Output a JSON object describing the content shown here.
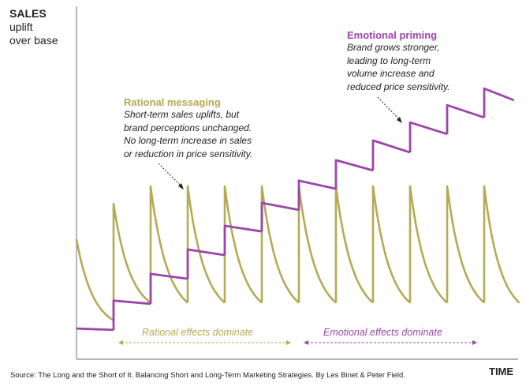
{
  "y_axis_label": {
    "line1": "SALES",
    "line2": "uplift",
    "line3": "over base"
  },
  "x_axis_label": "TIME",
  "rational_callout": {
    "title": "Rational messaging",
    "lines": [
      "Short-term sales uplifts, but",
      "brand perceptions unchanged.",
      "No long-term increase in sales",
      "or reduction in price sensitivity."
    ]
  },
  "emotional_callout": {
    "title": "Emotional priming",
    "lines": [
      "Brand grows stronger,",
      "leading to long-term",
      "volume increase and",
      "reduced price sensitivity."
    ]
  },
  "regions": {
    "rational": "Rational effects dominate",
    "emotional": "Emotional effects dominate"
  },
  "source": "Source: The Long and the Short of It. Balancing Short and Long-Term Marketing Strategies. By Les Binet & Peter Field.",
  "colors": {
    "rational": "#b5aa55",
    "emotional": "#9b46a8",
    "axis": "#888888"
  },
  "chart_data": {
    "type": "line",
    "title": "",
    "xlabel": "TIME",
    "ylabel": "SALES uplift over base",
    "xlim": [
      0,
      12
    ],
    "ylim": [
      0,
      100
    ],
    "rational_series": {
      "name": "Rational messaging (short-term uplifts)",
      "segments": [
        {
          "t0": 0,
          "t1": 1,
          "start": 34,
          "end": 11
        },
        {
          "t0": 1,
          "t1": 2,
          "start": 44,
          "end": 16
        },
        {
          "t0": 2,
          "t1": 3,
          "start": 49,
          "end": 16
        },
        {
          "t0": 3,
          "t1": 4,
          "start": 49,
          "end": 16
        },
        {
          "t0": 4,
          "t1": 5,
          "start": 49,
          "end": 16
        },
        {
          "t0": 5,
          "t1": 6,
          "start": 49,
          "end": 16
        },
        {
          "t0": 6,
          "t1": 7,
          "start": 49,
          "end": 16
        },
        {
          "t0": 7,
          "t1": 8,
          "start": 49,
          "end": 16
        },
        {
          "t0": 8,
          "t1": 9,
          "start": 49,
          "end": 16
        },
        {
          "t0": 9,
          "t1": 10,
          "start": 49,
          "end": 16
        },
        {
          "t0": 10,
          "t1": 11,
          "start": 49,
          "end": 16
        },
        {
          "t0": 11,
          "t1": 11.95,
          "start": 49,
          "end": 16
        }
      ]
    },
    "emotional_series": {
      "name": "Emotional priming (long-term growth)",
      "segments": [
        {
          "t0": 0,
          "t1": 1,
          "start": 8.7,
          "end": 8.3
        },
        {
          "t0": 1,
          "t1": 2,
          "start": 16.6,
          "end": 15.7
        },
        {
          "t0": 2,
          "t1": 3,
          "start": 24.2,
          "end": 22.8
        },
        {
          "t0": 3,
          "t1": 4,
          "start": 31.1,
          "end": 29.5
        },
        {
          "t0": 4,
          "t1": 5,
          "start": 37.8,
          "end": 36.2
        },
        {
          "t0": 5,
          "t1": 6,
          "start": 44.3,
          "end": 42.3
        },
        {
          "t0": 6,
          "t1": 7,
          "start": 50.6,
          "end": 48.3
        },
        {
          "t0": 7,
          "t1": 8,
          "start": 56.4,
          "end": 53.5
        },
        {
          "t0": 8,
          "t1": 9,
          "start": 62.0,
          "end": 58.6
        },
        {
          "t0": 9,
          "t1": 10,
          "start": 67.1,
          "end": 63.8
        },
        {
          "t0": 10,
          "t1": 11,
          "start": 72.0,
          "end": 68.5
        },
        {
          "t0": 11,
          "t1": 11.8,
          "start": 76.7,
          "end": 73.4
        }
      ]
    },
    "region_ranges": {
      "rational": [
        1.2,
        5.8
      ],
      "emotional": [
        6.2,
        10.8
      ]
    }
  }
}
